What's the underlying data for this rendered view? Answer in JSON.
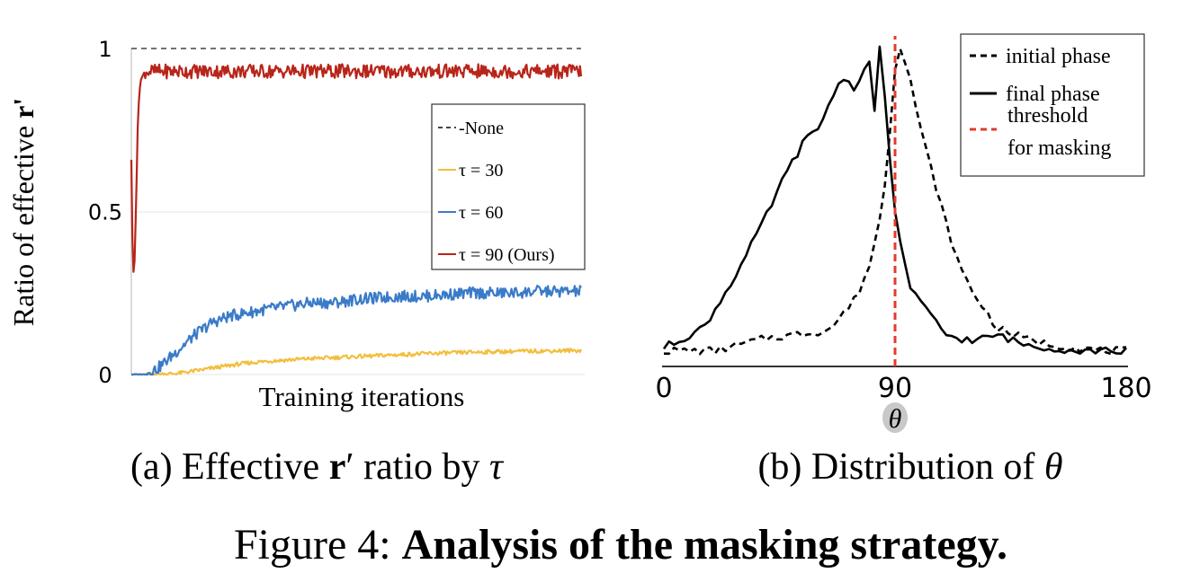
{
  "figure": {
    "caption_prefix": "Figure 4:",
    "caption_bold": "Analysis of the masking strategy."
  },
  "chart_data": [
    {
      "type": "line",
      "subcaption": {
        "prefix": "(a) Effective ",
        "bold_symbol": "r",
        "prime": "′",
        "middle": " ratio by ",
        "italic_symbol": "τ"
      },
      "xlabel": "Training iterations",
      "ylabel": {
        "text": "Ratio of effective ",
        "bold": "r'"
      },
      "yticks": [
        {
          "value": 0,
          "label": "0"
        },
        {
          "value": 0.5,
          "label": "0.5"
        },
        {
          "value": 1,
          "label": "1"
        }
      ],
      "ylim": [
        0,
        1
      ],
      "xlim": [
        0,
        1
      ],
      "grid": "horizontal",
      "legend_position": "right",
      "series": [
        {
          "name": "None",
          "legend_label": "-None",
          "color": "#444444",
          "style": "dashed",
          "x": [
            0,
            1
          ],
          "values": [
            1,
            1
          ]
        },
        {
          "name": "τ = 30",
          "color": "#f2be3c",
          "style": "solid",
          "x": [
            0.0,
            0.05,
            0.1,
            0.15,
            0.2,
            0.25,
            0.3,
            0.35,
            0.4,
            0.45,
            0.5,
            0.55,
            0.6,
            0.65,
            0.7,
            0.75,
            0.8,
            0.85,
            0.9,
            0.95,
            1.0
          ],
          "values": [
            0.0,
            0.0,
            0.003,
            0.013,
            0.024,
            0.034,
            0.041,
            0.045,
            0.049,
            0.052,
            0.055,
            0.058,
            0.061,
            0.064,
            0.066,
            0.068,
            0.07,
            0.071,
            0.072,
            0.073,
            0.074
          ]
        },
        {
          "name": "τ = 60",
          "color": "#3a7bc8",
          "style": "solid",
          "x": [
            0.0,
            0.03,
            0.06,
            0.1,
            0.14,
            0.18,
            0.22,
            0.26,
            0.3,
            0.35,
            0.4,
            0.45,
            0.5,
            0.55,
            0.6,
            0.65,
            0.7,
            0.75,
            0.8,
            0.85,
            0.9,
            0.95,
            1.0
          ],
          "values": [
            0.0,
            0.0,
            0.02,
            0.07,
            0.12,
            0.16,
            0.18,
            0.19,
            0.2,
            0.21,
            0.22,
            0.22,
            0.23,
            0.235,
            0.24,
            0.24,
            0.245,
            0.25,
            0.25,
            0.25,
            0.255,
            0.255,
            0.255
          ]
        },
        {
          "name": "τ = 90 (Ours)",
          "color": "#b8251a",
          "style": "solid",
          "x": [
            0.0,
            0.003,
            0.006,
            0.01,
            0.015,
            0.02,
            0.03,
            0.05,
            0.1,
            0.2,
            0.3,
            0.4,
            0.5,
            0.6,
            0.7,
            0.8,
            0.9,
            1.0
          ],
          "values": [
            0.66,
            0.35,
            0.29,
            0.5,
            0.8,
            0.9,
            0.93,
            0.93,
            0.93,
            0.93,
            0.93,
            0.93,
            0.93,
            0.93,
            0.93,
            0.93,
            0.93,
            0.93
          ]
        }
      ]
    },
    {
      "type": "line",
      "subcaption": {
        "prefix": "(b) Distribution of ",
        "italic_symbol": "θ"
      },
      "xlabel": "θ",
      "xticks": [
        {
          "value": 0,
          "label": "0"
        },
        {
          "value": 90,
          "label": "90"
        },
        {
          "value": 180,
          "label": "180"
        }
      ],
      "xlim": [
        0,
        180
      ],
      "ylim": [
        0,
        1.05
      ],
      "legend_position": "top-right",
      "series": [
        {
          "name": "initial phase",
          "color": "#000000",
          "style": "dashed",
          "x": [
            0,
            10,
            20,
            30,
            40,
            50,
            60,
            65,
            70,
            75,
            80,
            85,
            88,
            90,
            92,
            95,
            100,
            105,
            110,
            115,
            120,
            125,
            130,
            140,
            150,
            160,
            170,
            180
          ],
          "values": [
            0.05,
            0.05,
            0.05,
            0.07,
            0.09,
            0.1,
            0.11,
            0.12,
            0.17,
            0.22,
            0.32,
            0.5,
            0.75,
            0.95,
            1.02,
            0.95,
            0.75,
            0.6,
            0.45,
            0.32,
            0.24,
            0.18,
            0.12,
            0.09,
            0.07,
            0.06,
            0.05,
            0.05
          ]
        },
        {
          "name": "final phase",
          "color": "#000000",
          "style": "solid",
          "x": [
            0,
            5,
            10,
            15,
            20,
            25,
            30,
            35,
            40,
            45,
            50,
            55,
            60,
            65,
            70,
            75,
            80,
            82,
            84,
            86,
            88,
            90,
            93,
            96,
            100,
            105,
            110,
            120,
            130,
            140,
            150,
            160,
            170,
            180
          ],
          "values": [
            0.06,
            0.08,
            0.1,
            0.12,
            0.18,
            0.25,
            0.32,
            0.4,
            0.48,
            0.57,
            0.65,
            0.72,
            0.75,
            0.85,
            0.92,
            0.88,
            0.98,
            0.8,
            1.02,
            0.85,
            0.65,
            0.5,
            0.35,
            0.25,
            0.2,
            0.15,
            0.1,
            0.08,
            0.1,
            0.07,
            0.06,
            0.05,
            0.05,
            0.05
          ]
        },
        {
          "name": "threshold for masking",
          "legend_lines": [
            "threshold",
            "for masking"
          ],
          "color": "#e33a2e",
          "style": "dashed",
          "x": [
            90,
            90
          ],
          "values": [
            0,
            1.05
          ]
        }
      ]
    }
  ]
}
